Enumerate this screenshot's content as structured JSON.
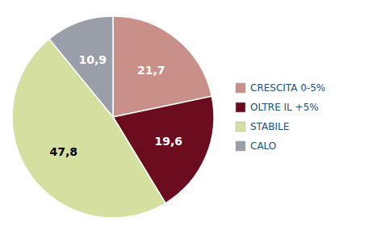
{
  "chart_data": {
    "type": "pie",
    "categories": [
      "CRESCITA 0-5%",
      "OLTRE IL +5%",
      "STABILE",
      "CALO"
    ],
    "values": [
      21.7,
      19.6,
      47.8,
      10.9
    ],
    "value_labels": [
      "21,7",
      "19,6",
      "47,8",
      "10,9"
    ],
    "colors": [
      "#c9908a",
      "#6b0c1e",
      "#d5dfa0",
      "#9a9ea8"
    ],
    "data_labels": true,
    "legend": "right"
  }
}
